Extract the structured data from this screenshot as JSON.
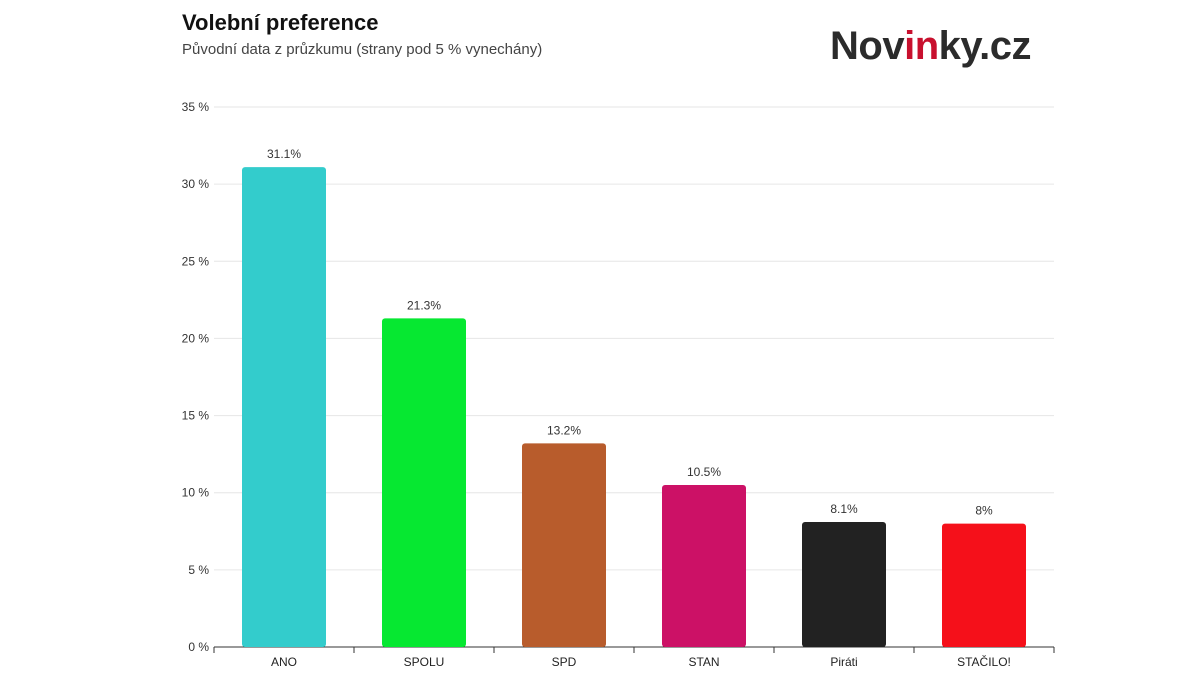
{
  "header": {
    "title": "Volební preference",
    "subtitle": "Původní data z průzkumu (strany pod 5 % vynechány)",
    "logo_text_before": "Nov",
    "logo_text_accent": "in",
    "logo_text_after": "ky.cz"
  },
  "colors": {
    "logo_accent": "#c8102e",
    "grid": "#e6e6e6",
    "axis": "#333333"
  },
  "chart_data": {
    "type": "bar",
    "title": "",
    "xlabel": "",
    "ylabel": "",
    "ylim": [
      0,
      35
    ],
    "y_ticks": [
      0,
      5,
      10,
      15,
      20,
      25,
      30,
      35
    ],
    "y_tick_labels": [
      "0 %",
      "5 %",
      "10 %",
      "15 %",
      "20 %",
      "25 %",
      "30 %",
      "35 %"
    ],
    "grid": true,
    "categories": [
      "ANO",
      "SPOLU",
      "SPD",
      "STAN",
      "Piráti",
      "STAČILO!"
    ],
    "values": [
      31.1,
      21.3,
      13.2,
      10.5,
      8.1,
      8
    ],
    "data_labels": [
      "31.1%",
      "21.3%",
      "13.2%",
      "10.5%",
      "8.1%",
      "8%"
    ],
    "bar_colors": [
      "#33cccc",
      "#06e831",
      "#b85c2c",
      "#cc1166",
      "#222222",
      "#f5101a"
    ]
  }
}
